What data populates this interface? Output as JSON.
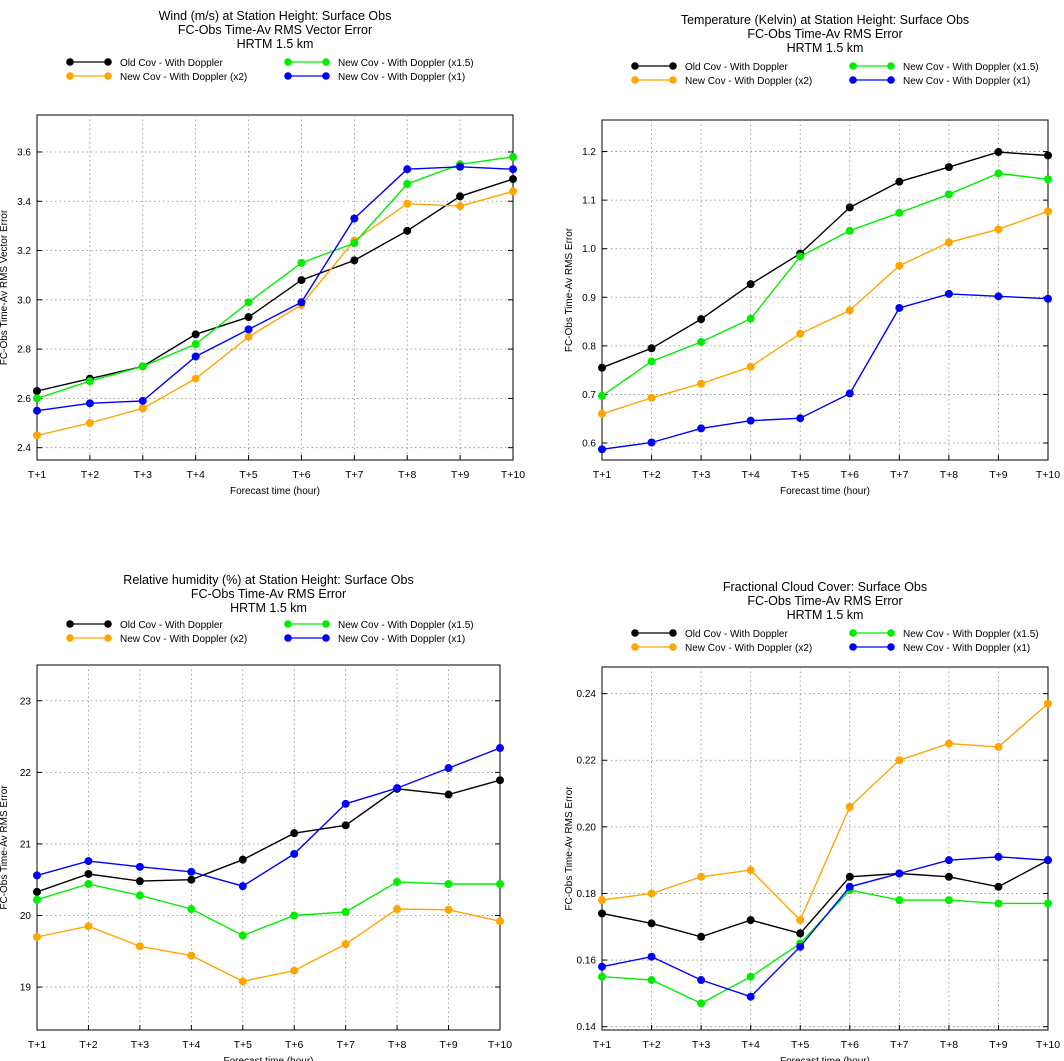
{
  "legend_labels": {
    "old": "Old Cov - With Doppler",
    "x15": "New Cov - With Doppler (x1.5)",
    "x2": "New Cov - With Doppler (x2)",
    "x1": "New Cov - With Doppler (x1)"
  },
  "colors": {
    "old": "#000000",
    "x15": "#00ee00",
    "x2": "#ffa500",
    "x1": "#0000ff"
  },
  "chart_data": [
    {
      "type": "line",
      "title_lines": [
        "Wind (m/s) at Station Height: Surface Obs",
        "FC-Obs Time-Av RMS Vector Error",
        "HRTM 1.5 km"
      ],
      "xlabel": "Forecast time (hour)",
      "ylabel": "FC-Obs Time-Av RMS Vector Error",
      "categories": [
        "T+1",
        "T+2",
        "T+3",
        "T+4",
        "T+5",
        "T+6",
        "T+7",
        "T+8",
        "T+9",
        "T+10"
      ],
      "ylim": [
        2.35,
        3.75
      ],
      "yticks": [
        "2.4",
        "2.6",
        "2.8",
        "3.0",
        "3.2",
        "3.4",
        "3.6"
      ],
      "grid": true,
      "series": [
        {
          "key": "old",
          "name": "Old Cov - With Doppler",
          "values": [
            2.63,
            2.68,
            2.73,
            2.86,
            2.93,
            3.08,
            3.16,
            3.28,
            3.42,
            3.49
          ]
        },
        {
          "key": "x2",
          "name": "New Cov - With Doppler (x2)",
          "values": [
            2.45,
            2.5,
            2.56,
            2.68,
            2.85,
            2.98,
            3.24,
            3.39,
            3.38,
            3.44
          ]
        },
        {
          "key": "x15",
          "name": "New Cov - With Doppler (x1.5)",
          "values": [
            2.6,
            2.67,
            2.73,
            2.82,
            2.99,
            3.15,
            3.23,
            3.47,
            3.55,
            3.58
          ]
        },
        {
          "key": "x1",
          "name": "New Cov - With Doppler (x1)",
          "values": [
            2.55,
            2.58,
            2.59,
            2.77,
            2.88,
            2.99,
            3.33,
            3.53,
            3.54,
            3.53
          ]
        }
      ]
    },
    {
      "type": "line",
      "title_lines": [
        "Temperature (Kelvin) at Station Height: Surface Obs",
        "FC-Obs Time-Av RMS Error",
        "HRTM 1.5 km"
      ],
      "xlabel": "Forecast time (hour)",
      "ylabel": "FC-Obs Time-Av RMS Error",
      "categories": [
        "T+1",
        "T+2",
        "T+3",
        "T+4",
        "T+5",
        "T+6",
        "T+7",
        "T+8",
        "T+9",
        "T+10"
      ],
      "ylim": [
        0.565,
        1.265
      ],
      "yticks": [
        "0.6",
        "0.7",
        "0.8",
        "0.9",
        "1.0",
        "1.1",
        "1.2"
      ],
      "grid": true,
      "series": [
        {
          "key": "old",
          "name": "Old Cov - With Doppler",
          "values": [
            0.755,
            0.795,
            0.855,
            0.927,
            0.99,
            1.085,
            1.138,
            1.168,
            1.199,
            1.192
          ]
        },
        {
          "key": "x2",
          "name": "New Cov - With Doppler (x2)",
          "values": [
            0.66,
            0.693,
            0.722,
            0.757,
            0.825,
            0.873,
            0.965,
            1.013,
            1.04,
            1.077
          ]
        },
        {
          "key": "x15",
          "name": "New Cov - With Doppler (x1.5)",
          "values": [
            0.697,
            0.768,
            0.808,
            0.856,
            0.984,
            1.037,
            1.074,
            1.112,
            1.155,
            1.143
          ]
        },
        {
          "key": "x1",
          "name": "New Cov - With Doppler (x1)",
          "values": [
            0.587,
            0.601,
            0.63,
            0.646,
            0.651,
            0.702,
            0.878,
            0.907,
            0.902,
            0.897
          ]
        }
      ]
    },
    {
      "type": "line",
      "title_lines": [
        "Relative humidity (%) at Station Height: Surface Obs",
        "FC-Obs Time-Av RMS Error",
        "HRTM 1.5 km"
      ],
      "xlabel": "Forecast time (hour)",
      "ylabel": "FC-Obs Time-Av RMS Error",
      "categories": [
        "T+1",
        "T+2",
        "T+3",
        "T+4",
        "T+5",
        "T+6",
        "T+7",
        "T+8",
        "T+9",
        "T+10"
      ],
      "ylim": [
        18.4,
        23.5
      ],
      "yticks": [
        "19",
        "20",
        "21",
        "22",
        "23"
      ],
      "grid": true,
      "series": [
        {
          "key": "old",
          "name": "Old Cov - With Doppler",
          "values": [
            20.33,
            20.58,
            20.48,
            20.5,
            20.78,
            21.15,
            21.26,
            21.77,
            21.69,
            21.89
          ]
        },
        {
          "key": "x2",
          "name": "New Cov - With Doppler (x2)",
          "values": [
            19.7,
            19.85,
            19.57,
            19.44,
            19.08,
            19.23,
            19.6,
            20.09,
            20.08,
            19.92
          ]
        },
        {
          "key": "x15",
          "name": "New Cov - With Doppler (x1.5)",
          "values": [
            20.22,
            20.44,
            20.28,
            20.09,
            19.72,
            20.0,
            20.05,
            20.47,
            20.44,
            20.44
          ]
        },
        {
          "key": "x1",
          "name": "New Cov - With Doppler (x1)",
          "values": [
            20.56,
            20.76,
            20.68,
            20.61,
            20.41,
            20.86,
            21.56,
            21.78,
            22.06,
            22.34
          ]
        }
      ]
    },
    {
      "type": "line",
      "title_lines": [
        "Fractional Cloud Cover: Surface Obs",
        "FC-Obs Time-Av RMS Error",
        "HRTM 1.5 km"
      ],
      "xlabel": "Forecast time (hour)",
      "ylabel": "FC-Obs Time-Av RMS Error",
      "categories": [
        "T+1",
        "T+2",
        "T+3",
        "T+4",
        "T+5",
        "T+6",
        "T+7",
        "T+8",
        "T+9",
        "T+10"
      ],
      "ylim": [
        0.139,
        0.248
      ],
      "yticks": [
        "0.14",
        "0.16",
        "0.18",
        "0.20",
        "0.22",
        "0.24"
      ],
      "grid": true,
      "series": [
        {
          "key": "old",
          "name": "Old Cov - With Doppler",
          "values": [
            0.174,
            0.171,
            0.167,
            0.172,
            0.168,
            0.185,
            0.186,
            0.185,
            0.182,
            0.19
          ]
        },
        {
          "key": "x2",
          "name": "New Cov - With Doppler (x2)",
          "values": [
            0.178,
            0.18,
            0.185,
            0.187,
            0.172,
            0.206,
            0.22,
            0.225,
            0.224,
            0.237
          ]
        },
        {
          "key": "x15",
          "name": "New Cov - With Doppler (x1.5)",
          "values": [
            0.155,
            0.154,
            0.147,
            0.155,
            0.165,
            0.181,
            0.178,
            0.178,
            0.177,
            0.177
          ]
        },
        {
          "key": "x1",
          "name": "New Cov - With Doppler (x1)",
          "values": [
            0.158,
            0.161,
            0.154,
            0.149,
            0.164,
            0.182,
            0.186,
            0.19,
            0.191,
            0.19
          ]
        }
      ]
    }
  ]
}
